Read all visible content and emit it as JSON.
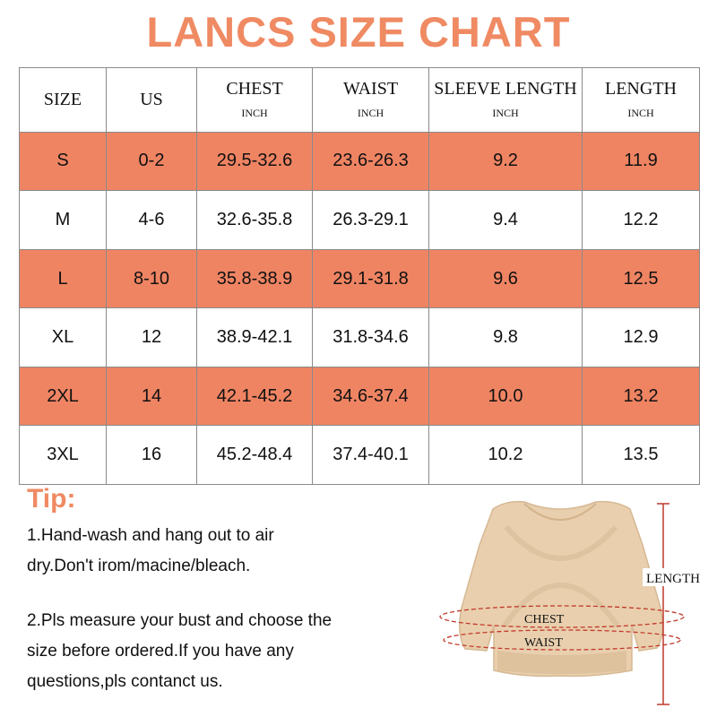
{
  "title": "LANCS SIZE CHART",
  "table": {
    "headers": [
      {
        "label": "SIZE",
        "unit": ""
      },
      {
        "label": "US",
        "unit": ""
      },
      {
        "label": "CHEST",
        "unit": "INCH"
      },
      {
        "label": "WAIST",
        "unit": "INCH"
      },
      {
        "label": "SLEEVE LENGTH",
        "unit": "INCH"
      },
      {
        "label": "LENGTH",
        "unit": "INCH"
      }
    ],
    "rows": [
      [
        "S",
        "0-2",
        "29.5-32.6",
        "23.6-26.3",
        "9.2",
        "11.9"
      ],
      [
        "M",
        "4-6",
        "32.6-35.8",
        "26.3-29.1",
        "9.4",
        "12.2"
      ],
      [
        "L",
        "8-10",
        "35.8-38.9",
        "29.1-31.8",
        "9.6",
        "12.5"
      ],
      [
        "XL",
        "12",
        "38.9-42.1",
        "31.8-34.6",
        "9.8",
        "12.9"
      ],
      [
        "2XL",
        "14",
        "42.1-45.2",
        "34.6-37.4",
        "10.0",
        "13.2"
      ],
      [
        "3XL",
        "16",
        "45.2-48.4",
        "37.4-40.1",
        "10.2",
        "13.5"
      ]
    ]
  },
  "tips": {
    "title": "Tip:",
    "tip1_line1": "1.Hand-wash and hang out to air",
    "tip1_line2": "dry.Don't irom/macine/bleach.",
    "tip2_line1": "2.Pls measure your bust and choose the",
    "tip2_line2": "size before ordered.If you have any",
    "tip2_line3": "questions,pls contanct us."
  },
  "figure": {
    "length_label": "LENGTH",
    "chest_label": "CHEST",
    "waist_label": "WAIST"
  },
  "colors": {
    "accent": "#ef8a63",
    "row_shade": "#ef8463",
    "measure_line": "#c0392b",
    "garment": "#e9cfae"
  }
}
